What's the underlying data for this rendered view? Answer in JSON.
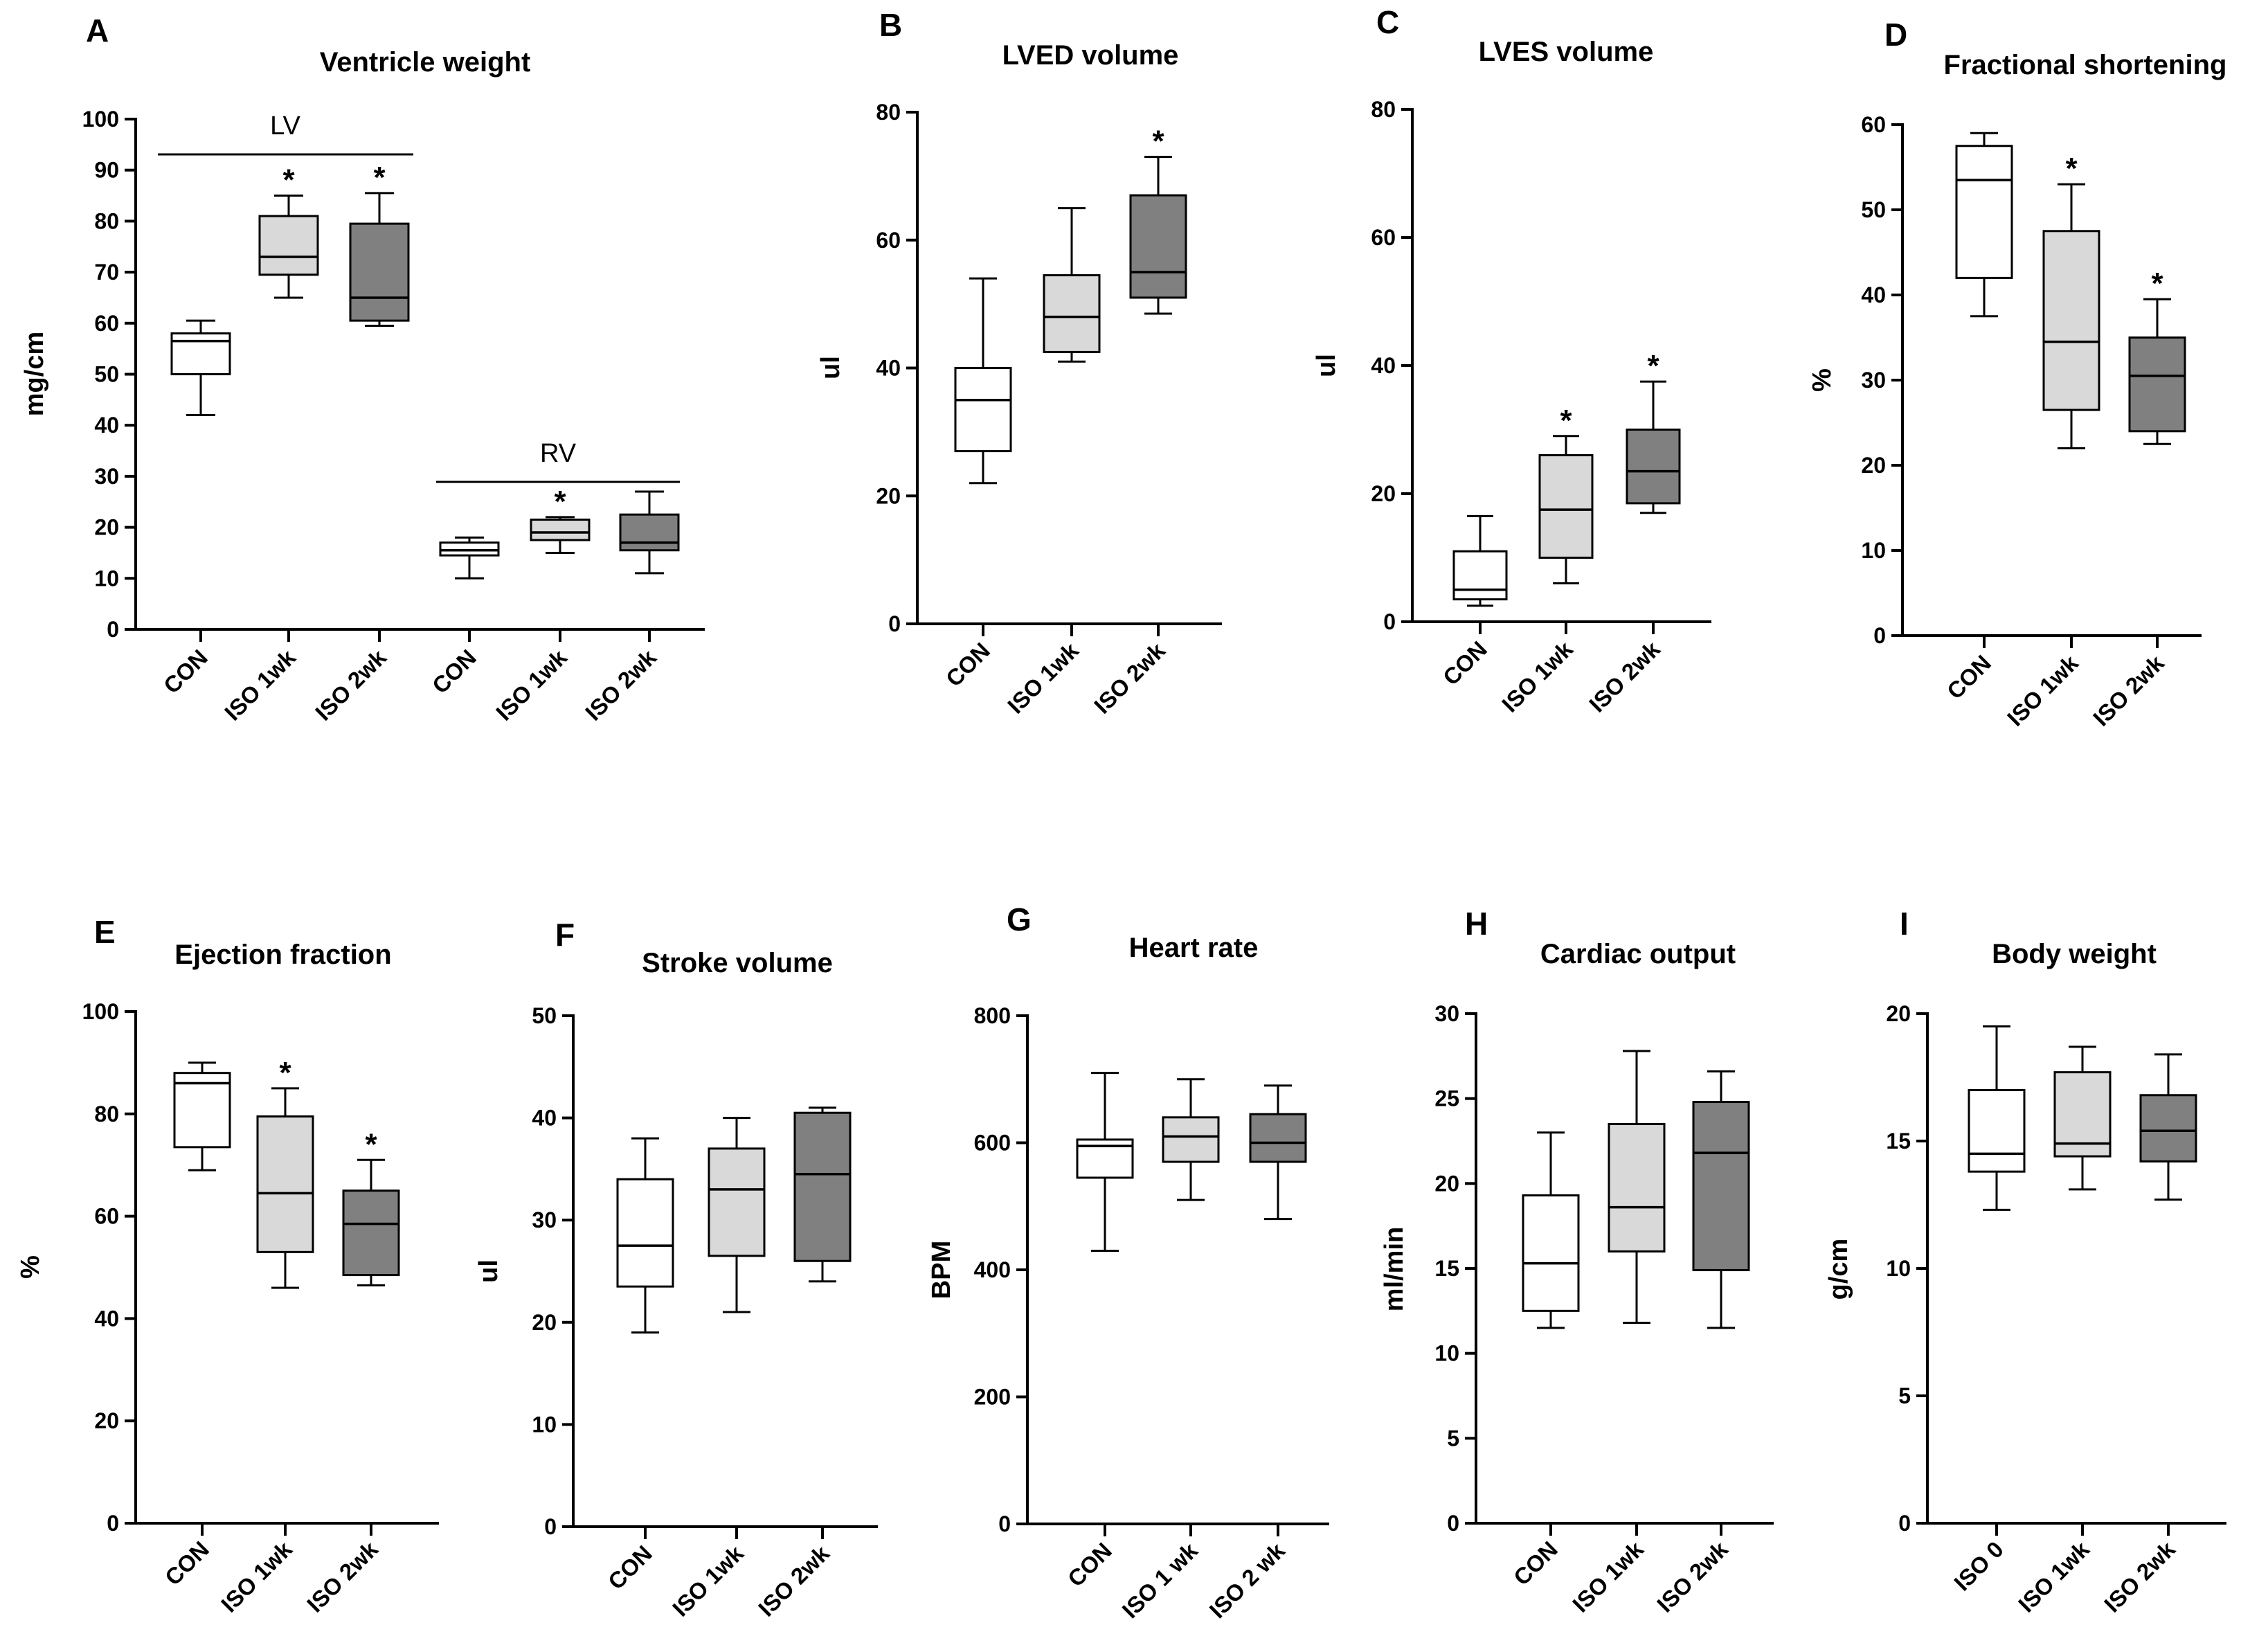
{
  "chart_data": [
    {
      "type": "box",
      "letter": "A",
      "title": "Ventricle weight",
      "ylabel": "mg/cm",
      "ylim": [
        0,
        100
      ],
      "yticks": [
        0,
        10,
        20,
        30,
        40,
        50,
        60,
        70,
        80,
        90,
        100
      ],
      "groups": [
        "LV",
        "RV"
      ],
      "categories": [
        "CON",
        "ISO 1wk",
        "ISO 2wk",
        "CON",
        "ISO 1wk",
        "ISO 2wk"
      ],
      "fill_colors": [
        "#ffffff",
        "#d9d9d9",
        "#808080",
        "#ffffff",
        "#d9d9d9",
        "#808080"
      ],
      "boxes": [
        {
          "min": 42,
          "q1": 50,
          "median": 56.5,
          "q3": 58,
          "max": 60.5,
          "sig": false
        },
        {
          "min": 65,
          "q1": 69.5,
          "median": 73,
          "q3": 81,
          "max": 85,
          "sig": true
        },
        {
          "min": 59.5,
          "q1": 60.5,
          "median": 65,
          "q3": 79.5,
          "max": 85.5,
          "sig": true
        },
        {
          "min": 10,
          "q1": 14.5,
          "median": 15.5,
          "q3": 17,
          "max": 18,
          "sig": false
        },
        {
          "min": 15,
          "q1": 17.5,
          "median": 19,
          "q3": 21.5,
          "max": 22,
          "sig": true
        },
        {
          "min": 11,
          "q1": 15.5,
          "median": 17,
          "q3": 22.5,
          "max": 27,
          "sig": false
        }
      ],
      "significance_marker": "*"
    },
    {
      "type": "box",
      "letter": "B",
      "title": "LVED volume",
      "ylabel": "ul",
      "ylim": [
        0,
        80
      ],
      "yticks": [
        0,
        20,
        40,
        60,
        80
      ],
      "categories": [
        "CON",
        "ISO 1wk",
        "ISO 2wk"
      ],
      "fill_colors": [
        "#ffffff",
        "#d9d9d9",
        "#808080"
      ],
      "boxes": [
        {
          "min": 22,
          "q1": 27,
          "median": 35,
          "q3": 40,
          "max": 54,
          "sig": false
        },
        {
          "min": 41,
          "q1": 42.5,
          "median": 48,
          "q3": 54.5,
          "max": 65,
          "sig": false
        },
        {
          "min": 48.5,
          "q1": 51,
          "median": 55,
          "q3": 67,
          "max": 73,
          "sig": true
        }
      ],
      "significance_marker": "*"
    },
    {
      "type": "box",
      "letter": "C",
      "title": "LVES volume",
      "ylabel": "ul",
      "ylim": [
        0,
        80
      ],
      "yticks": [
        0,
        20,
        40,
        60,
        80
      ],
      "categories": [
        "CON",
        "ISO 1wk",
        "ISO 2wk"
      ],
      "fill_colors": [
        "#ffffff",
        "#d9d9d9",
        "#808080"
      ],
      "boxes": [
        {
          "min": 2.5,
          "q1": 3.5,
          "median": 5,
          "q3": 11,
          "max": 16.5,
          "sig": false
        },
        {
          "min": 6,
          "q1": 10,
          "median": 17.5,
          "q3": 26,
          "max": 29,
          "sig": true
        },
        {
          "min": 17,
          "q1": 18.5,
          "median": 23.5,
          "q3": 30,
          "max": 37.5,
          "sig": true
        }
      ],
      "significance_marker": "*"
    },
    {
      "type": "box",
      "letter": "D",
      "title": "Fractional shortening",
      "ylabel": "%",
      "ylim": [
        0,
        60
      ],
      "yticks": [
        0,
        10,
        20,
        30,
        40,
        50,
        60
      ],
      "categories": [
        "CON",
        "ISO 1wk",
        "ISO 2wk"
      ],
      "fill_colors": [
        "#ffffff",
        "#d9d9d9",
        "#808080"
      ],
      "boxes": [
        {
          "min": 37.5,
          "q1": 42,
          "median": 53.5,
          "q3": 57.5,
          "max": 59,
          "sig": false
        },
        {
          "min": 22,
          "q1": 26.5,
          "median": 34.5,
          "q3": 47.5,
          "max": 53,
          "sig": true
        },
        {
          "min": 22.5,
          "q1": 24,
          "median": 30.5,
          "q3": 35,
          "max": 39.5,
          "sig": true
        }
      ],
      "significance_marker": "*"
    },
    {
      "type": "box",
      "letter": "E",
      "title": "Ejection fraction",
      "ylabel": "%",
      "ylim": [
        0,
        100
      ],
      "yticks": [
        0,
        20,
        40,
        60,
        80,
        100
      ],
      "categories": [
        "CON",
        "ISO 1wk",
        "ISO 2wk"
      ],
      "fill_colors": [
        "#ffffff",
        "#d9d9d9",
        "#808080"
      ],
      "boxes": [
        {
          "min": 69,
          "q1": 73.5,
          "median": 86,
          "q3": 88,
          "max": 90,
          "sig": false
        },
        {
          "min": 46,
          "q1": 53,
          "median": 64.5,
          "q3": 79.5,
          "max": 85,
          "sig": true
        },
        {
          "min": 46.5,
          "q1": 48.5,
          "median": 58.5,
          "q3": 65,
          "max": 71,
          "sig": true
        }
      ],
      "significance_marker": "*"
    },
    {
      "type": "box",
      "letter": "F",
      "title": "Stroke volume",
      "ylabel": "ul",
      "ylim": [
        0,
        50
      ],
      "yticks": [
        0,
        10,
        20,
        30,
        40,
        50
      ],
      "categories": [
        "CON",
        "ISO 1wk",
        "ISO 2wk"
      ],
      "fill_colors": [
        "#ffffff",
        "#d9d9d9",
        "#808080"
      ],
      "boxes": [
        {
          "min": 19,
          "q1": 23.5,
          "median": 27.5,
          "q3": 34,
          "max": 38,
          "sig": false
        },
        {
          "min": 21,
          "q1": 26.5,
          "median": 33,
          "q3": 37,
          "max": 40,
          "sig": false
        },
        {
          "min": 24,
          "q1": 26,
          "median": 34.5,
          "q3": 40.5,
          "max": 41,
          "sig": false
        }
      ],
      "significance_marker": "*"
    },
    {
      "type": "box",
      "letter": "G",
      "title": "Heart rate",
      "ylabel": "BPM",
      "ylim": [
        0,
        800
      ],
      "yticks": [
        0,
        200,
        400,
        600,
        800
      ],
      "categories": [
        "CON",
        "ISO 1 wk",
        "ISO 2 wk"
      ],
      "fill_colors": [
        "#ffffff",
        "#d9d9d9",
        "#808080"
      ],
      "boxes": [
        {
          "min": 430,
          "q1": 545,
          "median": 595,
          "q3": 605,
          "max": 710,
          "sig": false
        },
        {
          "min": 510,
          "q1": 570,
          "median": 610,
          "q3": 640,
          "max": 700,
          "sig": false
        },
        {
          "min": 480,
          "q1": 570,
          "median": 600,
          "q3": 645,
          "max": 690,
          "sig": false
        }
      ],
      "significance_marker": "*"
    },
    {
      "type": "box",
      "letter": "H",
      "title": "Cardiac output",
      "ylabel": "ml/min",
      "ylim": [
        0,
        30
      ],
      "yticks": [
        0,
        5,
        10,
        15,
        20,
        25,
        30
      ],
      "categories": [
        "CON",
        "ISO 1wk",
        "ISO 2wk"
      ],
      "fill_colors": [
        "#ffffff",
        "#d9d9d9",
        "#808080"
      ],
      "boxes": [
        {
          "min": 11.5,
          "q1": 12.5,
          "median": 15.3,
          "q3": 19.3,
          "max": 23,
          "sig": false
        },
        {
          "min": 11.8,
          "q1": 16,
          "median": 18.6,
          "q3": 23.5,
          "max": 27.8,
          "sig": false
        },
        {
          "min": 11.5,
          "q1": 14.9,
          "median": 21.8,
          "q3": 24.8,
          "max": 26.6,
          "sig": false
        }
      ],
      "significance_marker": "*"
    },
    {
      "type": "box",
      "letter": "I",
      "title": "Body weight",
      "ylabel": "g/cm",
      "ylim": [
        0,
        20
      ],
      "yticks": [
        0,
        5,
        10,
        15,
        20
      ],
      "categories": [
        "ISO 0",
        "ISO 1wk",
        "ISO 2wk"
      ],
      "fill_colors": [
        "#ffffff",
        "#d9d9d9",
        "#808080"
      ],
      "boxes": [
        {
          "min": 12.3,
          "q1": 13.8,
          "median": 14.5,
          "q3": 17,
          "max": 19.5,
          "sig": false
        },
        {
          "min": 13.1,
          "q1": 14.4,
          "median": 14.9,
          "q3": 17.7,
          "max": 18.7,
          "sig": false
        },
        {
          "min": 12.7,
          "q1": 14.2,
          "median": 15.4,
          "q3": 16.8,
          "max": 18.4,
          "sig": false
        }
      ],
      "significance_marker": "*"
    }
  ]
}
